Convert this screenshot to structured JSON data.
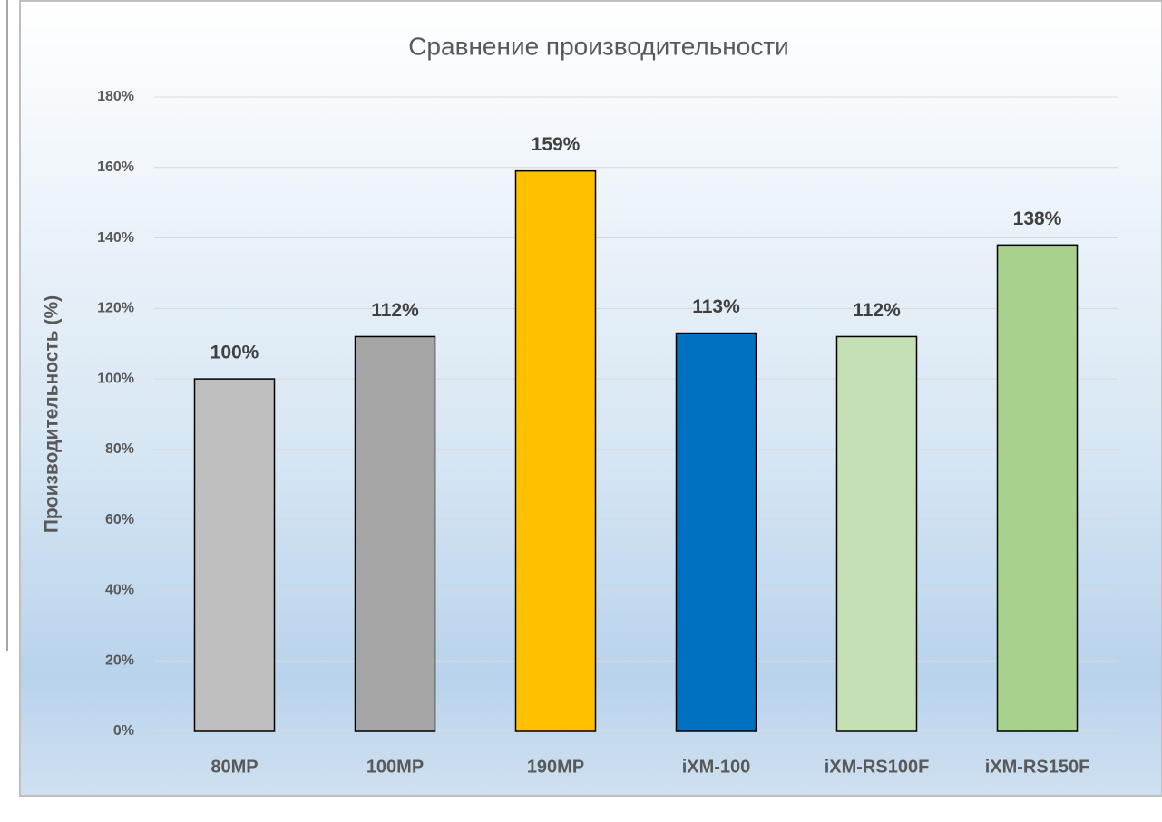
{
  "chart_data": {
    "type": "bar",
    "title": "Сравнение производительности",
    "y_label": "Производительность (%)",
    "categories": [
      "80MP",
      "100MP",
      "190MP",
      "iXM-100",
      "iXM-RS100F",
      "iXM-RS150F"
    ],
    "values": [
      100,
      112,
      159,
      113,
      112,
      138
    ],
    "value_labels": [
      "100%",
      "112%",
      "159%",
      "113%",
      "112%",
      "138%"
    ],
    "colors": [
      "#bfbfbf",
      "#a5a5a5",
      "#ffc000",
      "#0070c0",
      "#c5e0b4",
      "#a9d18e"
    ],
    "ylim": [
      0,
      180
    ],
    "yticks": [
      {
        "value": 0,
        "label": "0%"
      },
      {
        "value": 20,
        "label": "20%"
      },
      {
        "value": 40,
        "label": "40%"
      },
      {
        "value": 60,
        "label": "60%"
      },
      {
        "value": 80,
        "label": "80%"
      },
      {
        "value": 100,
        "label": "100%"
      },
      {
        "value": 120,
        "label": "120%"
      },
      {
        "value": 140,
        "label": "140%"
      },
      {
        "value": 160,
        "label": "160%"
      },
      {
        "value": 180,
        "label": "180%"
      }
    ],
    "grid": true
  }
}
